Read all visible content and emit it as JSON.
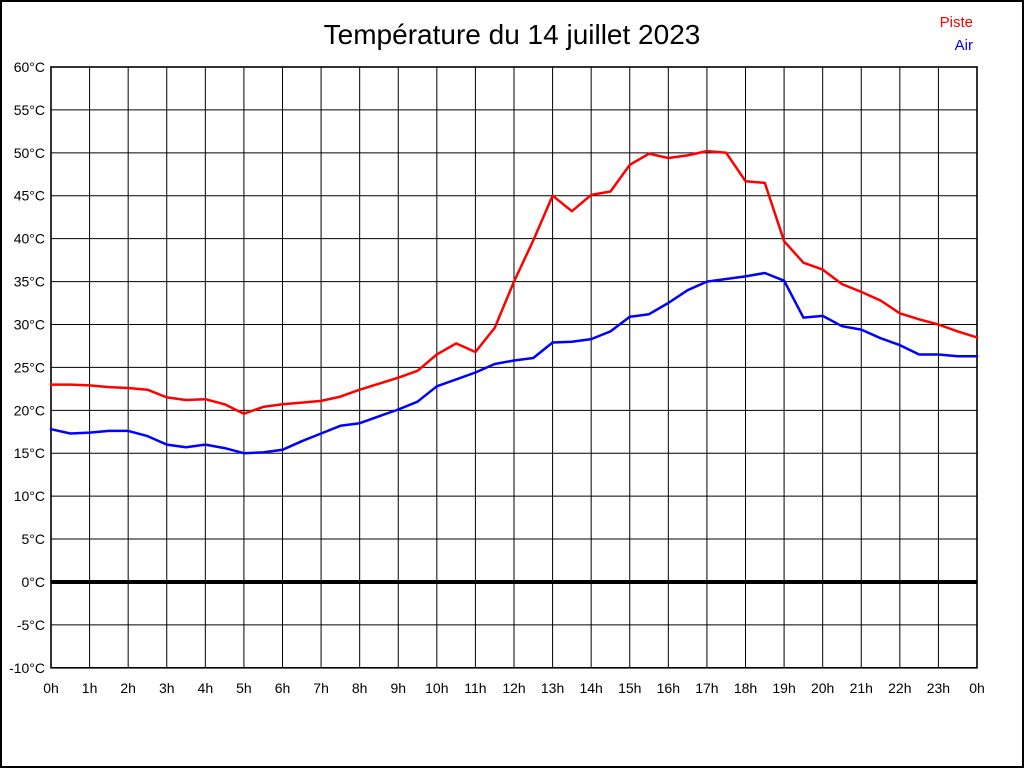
{
  "title": "Température du 14 juillet 2023",
  "legend": {
    "piste_label": "Piste",
    "air_label": "Air"
  },
  "colors": {
    "piste": "#ff0000",
    "air": "#0000ff",
    "grid": "#000000",
    "zero_line": "#000000",
    "text": "#000000",
    "background": "#ffffff"
  },
  "chart_data": {
    "type": "line",
    "title": "Température du 14 juillet 2023",
    "xlabel": "",
    "ylabel": "",
    "xlim": [
      0,
      24
    ],
    "ylim": [
      -10,
      60
    ],
    "y_tick_step": 5,
    "grid": true,
    "zero_line_bold": true,
    "legend_position": "top-right",
    "x_tick_labels": [
      "0h",
      "1h",
      "2h",
      "3h",
      "4h",
      "5h",
      "6h",
      "7h",
      "8h",
      "9h",
      "10h",
      "11h",
      "12h",
      "13h",
      "14h",
      "15h",
      "16h",
      "17h",
      "18h",
      "19h",
      "20h",
      "21h",
      "22h",
      "23h",
      "0h"
    ],
    "y_tick_labels": [
      "60°C",
      "55°C",
      "50°C",
      "45°C",
      "40°C",
      "35°C",
      "30°C",
      "25°C",
      "20°C",
      "15°C",
      "10°C",
      "5°C",
      "0°C",
      "-5°C",
      "-10°C"
    ],
    "y_tick_values": [
      60,
      55,
      50,
      45,
      40,
      35,
      30,
      25,
      20,
      15,
      10,
      5,
      0,
      -5,
      -10
    ],
    "x": [
      0,
      0.5,
      1,
      1.5,
      2,
      2.5,
      3,
      3.5,
      4,
      4.5,
      5,
      5.5,
      6,
      6.5,
      7,
      7.5,
      8,
      8.5,
      9,
      9.5,
      10,
      10.5,
      11,
      11.5,
      12,
      12.5,
      13,
      13.5,
      14,
      14.5,
      15,
      15.5,
      16,
      16.5,
      17,
      17.5,
      18,
      18.5,
      19,
      19.5,
      20,
      20.5,
      21,
      21.5,
      22,
      22.5,
      23,
      23.5,
      24
    ],
    "series": [
      {
        "name": "Piste",
        "color": "#ff0000",
        "values": [
          23.0,
          23.0,
          22.9,
          22.7,
          22.6,
          22.4,
          21.5,
          21.2,
          21.3,
          20.7,
          19.6,
          20.4,
          20.7,
          20.9,
          21.1,
          21.6,
          22.4,
          23.1,
          23.8,
          24.6,
          26.5,
          27.8,
          26.8,
          29.6,
          35.0,
          39.8,
          45.0,
          43.2,
          45.1,
          45.5,
          48.6,
          49.9,
          49.4,
          49.7,
          50.2,
          50.0,
          46.7,
          46.5,
          39.7,
          37.2,
          36.4,
          34.7,
          33.8,
          32.8,
          31.3,
          30.6,
          30.0,
          29.2,
          28.5
        ]
      },
      {
        "name": "Air",
        "color": "#0000ff",
        "values": [
          17.8,
          17.3,
          17.4,
          17.6,
          17.6,
          17.0,
          16.0,
          15.7,
          16.0,
          15.6,
          15.0,
          15.1,
          15.4,
          16.4,
          17.3,
          18.2,
          18.5,
          19.3,
          20.1,
          21.0,
          22.8,
          23.6,
          24.4,
          25.4,
          25.8,
          26.1,
          27.9,
          28.0,
          28.3,
          29.2,
          30.9,
          31.2,
          32.5,
          34.0,
          35.0,
          35.3,
          35.6,
          36.0,
          35.1,
          30.8,
          31.0,
          29.8,
          29.4,
          28.4,
          27.6,
          26.5,
          26.5,
          26.3,
          26.3
        ]
      }
    ]
  }
}
